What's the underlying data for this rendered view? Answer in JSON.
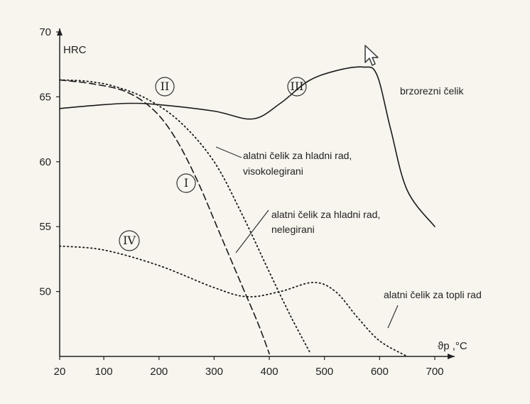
{
  "chart_data": {
    "type": "line",
    "ylabel": "HRC",
    "xlabel": "ϑp ,°C",
    "xlim": [
      20,
      700
    ],
    "ylim": [
      45,
      70
    ],
    "x_ticks": [
      "20",
      "100",
      "200",
      "300",
      "400",
      "500",
      "600",
      "700"
    ],
    "y_ticks": [
      "70",
      "65",
      "60",
      "55",
      "50"
    ],
    "series": [
      {
        "name": "brzorezni čelik",
        "marker": "III",
        "style": "solid",
        "x": [
          20,
          100,
          150,
          200,
          300,
          370,
          420,
          470,
          520,
          570,
          595,
          620,
          650,
          700
        ],
        "y": [
          64.1,
          64.4,
          64.5,
          64.4,
          63.9,
          63.3,
          64.5,
          66.2,
          67.0,
          67.3,
          66.7,
          62.5,
          57.8,
          55.0
        ]
      },
      {
        "name": "alatni čelik za hladni rad, visokolegirani",
        "marker": "II",
        "style": "dotted",
        "x": [
          20,
          70,
          120,
          180,
          240,
          300,
          350,
          400,
          440,
          475
        ],
        "y": [
          66.3,
          66.2,
          65.8,
          64.8,
          63.0,
          60.0,
          56.0,
          51.5,
          48.0,
          45.2
        ]
      },
      {
        "name": "alatni čelik za hladni rad, nelegirani",
        "marker": "I",
        "style": "dashed",
        "x": [
          20,
          80,
          140,
          190,
          230,
          270,
          310,
          350,
          380,
          400
        ],
        "y": [
          66.3,
          66.0,
          65.4,
          64.0,
          61.8,
          58.5,
          54.5,
          50.5,
          47.5,
          45.2
        ]
      },
      {
        "name": "alatni čelik za topli rad",
        "marker": "IV",
        "style": "dotted",
        "x": [
          20,
          100,
          200,
          300,
          360,
          420,
          480,
          520,
          560,
          600,
          650
        ],
        "y": [
          53.5,
          53.2,
          52.0,
          50.3,
          49.6,
          50.0,
          50.7,
          50.0,
          48.0,
          46.2,
          45.0
        ]
      }
    ]
  }
}
